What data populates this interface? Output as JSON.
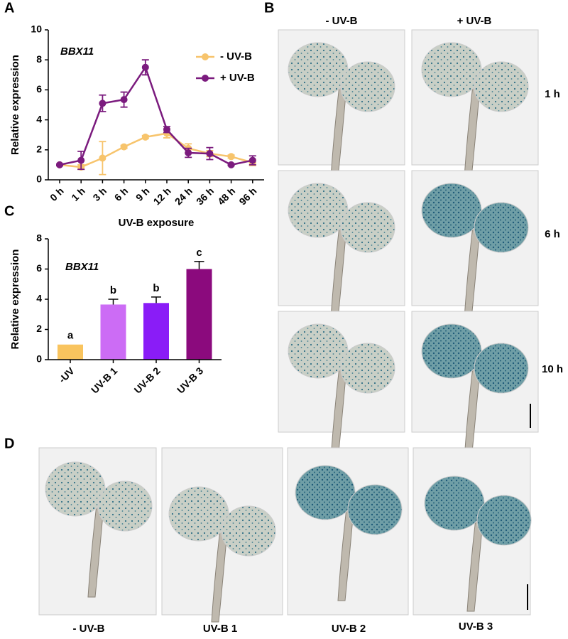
{
  "panel_labels": [
    "A",
    "B",
    "C",
    "D"
  ],
  "photo_b": {
    "columns": [
      "- UV-B",
      "+ UV-B"
    ],
    "rows": [
      "1 h",
      "6 h",
      "10 h"
    ]
  },
  "photo_d": {
    "labels": [
      "- UV-B",
      "UV-B 1",
      "UV-B 2",
      "UV-B 3"
    ]
  },
  "chart_data": [
    {
      "type": "line",
      "annotation": "BBX11",
      "y_label": "Relative expression",
      "x_label": "UV-B exposure",
      "categories": [
        "0 h",
        "1 h",
        "3 h",
        "6 h",
        "9 h",
        "12 h",
        "24 h",
        "36 h",
        "48 h",
        "96 h"
      ],
      "series": [
        {
          "name": "- UV-B",
          "color": "#f7c46c",
          "values": [
            1,
            0.85,
            1.45,
            2.2,
            2.85,
            3.1,
            2.1,
            1.75,
            1.55,
            1.15
          ],
          "errors": [
            0.05,
            0.15,
            1.1,
            0.1,
            0.1,
            0.3,
            0.3,
            0.2,
            0.1,
            0.2
          ]
        },
        {
          "name": "+ UV-B",
          "color": "#7b1b7e",
          "values": [
            1,
            1.3,
            5.1,
            5.35,
            7.5,
            3.35,
            1.8,
            1.75,
            1.0,
            1.3
          ],
          "errors": [
            0.05,
            0.6,
            0.55,
            0.5,
            0.5,
            0.2,
            0.3,
            0.4,
            0.05,
            0.3
          ]
        }
      ],
      "ylim": [
        0,
        10
      ],
      "yticks": [
        0,
        2,
        4,
        6,
        8,
        10
      ],
      "legend": "upper right"
    },
    {
      "type": "bar",
      "annotation": "BBX11",
      "y_label": "Relative expression",
      "categories": [
        "-UV",
        "UV-B 1",
        "UV-B 2",
        "UV-B 3"
      ],
      "values": [
        1,
        3.65,
        3.75,
        6.0
      ],
      "errors": [
        0,
        0.35,
        0.4,
        0.5
      ],
      "colors": [
        "#f9c45e",
        "#cc6cf5",
        "#8a1cf7",
        "#8b0a7d"
      ],
      "letters": [
        "a",
        "b",
        "b",
        "c"
      ],
      "ylim": [
        0,
        8
      ],
      "yticks": [
        0,
        2,
        4,
        6,
        8
      ]
    }
  ]
}
